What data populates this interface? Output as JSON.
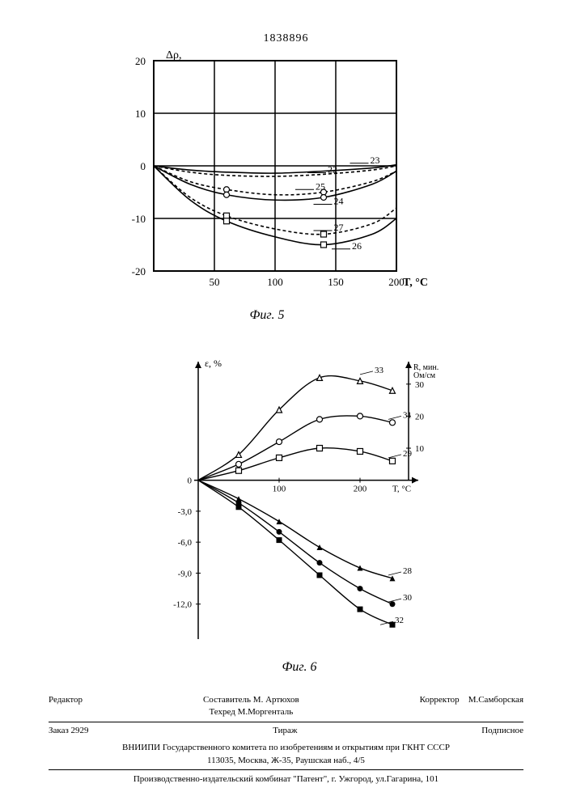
{
  "doc_number": "1838896",
  "fig5": {
    "caption": "Фиг. 5",
    "y_label": "Δρ,",
    "x_label": "T, °C",
    "x_ticks": [
      50,
      100,
      150,
      200
    ],
    "y_ticks": [
      20,
      10,
      0,
      -10,
      -20
    ],
    "x_range": [
      0,
      200
    ],
    "y_range": [
      -20,
      20
    ],
    "grid_color": "#000000",
    "curve_labels": [
      "22",
      "23",
      "24",
      "25",
      "26",
      "27"
    ],
    "curves": [
      {
        "id": "22",
        "dash": "4,3",
        "marker": "none",
        "pts": [
          [
            0,
            0
          ],
          [
            30,
            -1.2
          ],
          [
            60,
            -1.8
          ],
          [
            100,
            -2.0
          ],
          [
            140,
            -1.6
          ],
          [
            180,
            -0.8
          ],
          [
            200,
            0
          ]
        ]
      },
      {
        "id": "23",
        "dash": "none",
        "marker": "none",
        "pts": [
          [
            0,
            0
          ],
          [
            30,
            -0.8
          ],
          [
            60,
            -1.2
          ],
          [
            100,
            -1.4
          ],
          [
            140,
            -1.0
          ],
          [
            180,
            -0.4
          ],
          [
            200,
            0.2
          ]
        ]
      },
      {
        "id": "25",
        "dash": "4,3",
        "marker": "circle",
        "pts": [
          [
            0,
            0
          ],
          [
            30,
            -3.0
          ],
          [
            60,
            -4.5
          ],
          [
            100,
            -5.5
          ],
          [
            140,
            -5.0
          ],
          [
            180,
            -3.0
          ],
          [
            200,
            -1.0
          ]
        ]
      },
      {
        "id": "24",
        "dash": "none",
        "marker": "circle",
        "pts": [
          [
            0,
            0
          ],
          [
            30,
            -3.5
          ],
          [
            60,
            -5.5
          ],
          [
            100,
            -6.5
          ],
          [
            140,
            -6.0
          ],
          [
            180,
            -3.5
          ],
          [
            200,
            -1.0
          ]
        ]
      },
      {
        "id": "27",
        "dash": "4,3",
        "marker": "square",
        "pts": [
          [
            0,
            0
          ],
          [
            30,
            -6.0
          ],
          [
            60,
            -9.5
          ],
          [
            100,
            -12.0
          ],
          [
            140,
            -13.0
          ],
          [
            180,
            -11.0
          ],
          [
            200,
            -8.0
          ]
        ]
      },
      {
        "id": "26",
        "dash": "none",
        "marker": "square",
        "pts": [
          [
            0,
            0
          ],
          [
            30,
            -6.5
          ],
          [
            60,
            -10.5
          ],
          [
            100,
            -13.5
          ],
          [
            140,
            -15.0
          ],
          [
            180,
            -13.0
          ],
          [
            200,
            -10.0
          ]
        ]
      }
    ],
    "label_positions": {
      "22": [
        130,
        -1.0
      ],
      "23": [
        165,
        0.8
      ],
      "25": [
        120,
        -4.2
      ],
      "24": [
        135,
        -7.0
      ],
      "27": [
        135,
        -12.0
      ],
      "26": [
        150,
        -15.5
      ]
    }
  },
  "fig6": {
    "caption": "Фиг. 6",
    "left_y_label": "ε, %",
    "right_y_label": "R, мин.\nОм/см",
    "x_label": "T, °C",
    "x_ticks": [
      100,
      200
    ],
    "left_y_ticks": [
      0,
      -3.0,
      -6.0,
      -9.0,
      -12.0
    ],
    "right_y_ticks": [
      10,
      20,
      30
    ],
    "curve_labels": [
      "28",
      "29",
      "30",
      "31",
      "32",
      "33"
    ],
    "curves_upper": [
      {
        "id": "33",
        "marker": "triangle",
        "pts_r": [
          [
            0,
            0
          ],
          [
            50,
            8
          ],
          [
            100,
            22
          ],
          [
            150,
            32
          ],
          [
            200,
            31
          ],
          [
            240,
            28
          ]
        ]
      },
      {
        "id": "31",
        "marker": "circle",
        "pts_r": [
          [
            0,
            0
          ],
          [
            50,
            5
          ],
          [
            100,
            12
          ],
          [
            150,
            19
          ],
          [
            200,
            20
          ],
          [
            240,
            18
          ]
        ]
      },
      {
        "id": "29",
        "marker": "square",
        "pts_r": [
          [
            0,
            0
          ],
          [
            50,
            3
          ],
          [
            100,
            7
          ],
          [
            150,
            10
          ],
          [
            200,
            9
          ],
          [
            240,
            6
          ]
        ]
      }
    ],
    "curves_lower": [
      {
        "id": "28",
        "marker": "triangle-filled",
        "pts_l": [
          [
            0,
            0
          ],
          [
            50,
            -1.8
          ],
          [
            100,
            -4.0
          ],
          [
            150,
            -6.5
          ],
          [
            200,
            -8.5
          ],
          [
            240,
            -9.5
          ]
        ]
      },
      {
        "id": "30",
        "marker": "circle-filled",
        "pts_l": [
          [
            0,
            0
          ],
          [
            50,
            -2.2
          ],
          [
            100,
            -5.0
          ],
          [
            150,
            -8.0
          ],
          [
            200,
            -10.5
          ],
          [
            240,
            -12.0
          ]
        ]
      },
      {
        "id": "32",
        "marker": "square-filled",
        "pts_l": [
          [
            0,
            0
          ],
          [
            50,
            -2.6
          ],
          [
            100,
            -5.8
          ],
          [
            150,
            -9.2
          ],
          [
            200,
            -12.5
          ],
          [
            240,
            -14.0
          ]
        ]
      }
    ],
    "label_positions": {
      "33": [
        210,
        33,
        "r"
      ],
      "31": [
        245,
        19,
        "r"
      ],
      "29": [
        245,
        7,
        "r"
      ],
      "28": [
        245,
        -9.2,
        "l"
      ],
      "30": [
        245,
        -11.8,
        "l"
      ],
      "32": [
        235,
        -14.0,
        "l"
      ]
    }
  },
  "footer": {
    "editor_label": "Редактор",
    "compiler": "Составитель М. Артюхов",
    "techred": "Техред М.Моргенталь",
    "corrector_label": "Корректор",
    "corrector": "М.Самборская",
    "order": "Заказ 2929",
    "tirazh": "Тираж",
    "subscription": "Подписное",
    "vniipi": "ВНИИПИ Государственного комитета по изобретениям и открытиям при ГКНТ СССР",
    "address1": "113035, Москва, Ж-35, Раушская наб., 4/5",
    "address2": "Производственно-издательский комбинат \"Патент\", г. Ужгород, ул.Гагарина, 101"
  }
}
